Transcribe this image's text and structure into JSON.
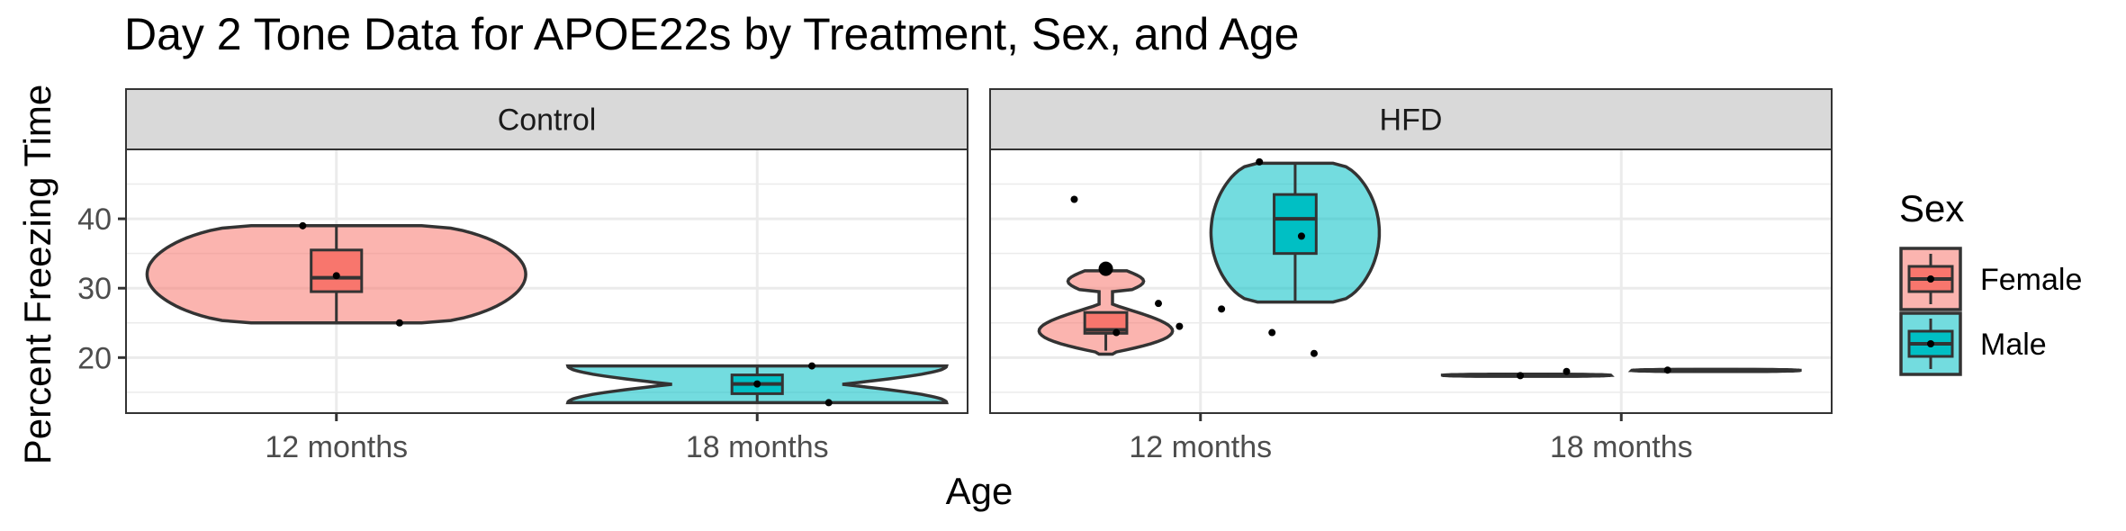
{
  "chart_data": {
    "type": "violin",
    "title": "Day 2 Tone Data for APOE22s by Treatment, Sex, and Age",
    "xlabel": "Age",
    "ylabel": "Percent Freezing Time",
    "ylim": [
      12,
      50
    ],
    "yticks": [
      20,
      30,
      40
    ],
    "grid": true,
    "categories": [
      "12 months",
      "18 months"
    ],
    "facets": [
      {
        "name": "Control",
        "groups": [
          {
            "age": "12 months",
            "sex": "Female",
            "violin_min": 25,
            "violin_max": 39,
            "box": {
              "q1": 29.5,
              "median": 31.5,
              "q3": 35.5,
              "whisker_low": 25,
              "whisker_high": 39
            },
            "points": [
              [
                -0.08,
                39
              ],
              [
                0,
                31.8
              ],
              [
                0.15,
                25
              ]
            ]
          },
          {
            "age": "18 months",
            "sex": "Male",
            "violin_min": 13.5,
            "violin_max": 18.8,
            "box": {
              "q1": 14.8,
              "median": 16.2,
              "q3": 17.5,
              "whisker_low": 13.5,
              "whisker_high": 18.8
            },
            "points": [
              [
                0.13,
                18.8
              ],
              [
                0,
                16.2
              ],
              [
                0.17,
                13.5
              ]
            ]
          }
        ]
      },
      {
        "name": "HFD",
        "groups": [
          {
            "age": "12 months",
            "sex": "Female",
            "violin_min": 20.5,
            "violin_max": 32.5,
            "box": {
              "q1": 23.5,
              "median": 24,
              "q3": 26.5,
              "whisker_low": 21,
              "whisker_high": 26.5
            },
            "points": [
              [
                -0.3,
                42.8
              ],
              [
                -0.1,
                27.8
              ],
              [
                -0.2,
                23.6
              ],
              [
                -0.05,
                24.5
              ],
              [
                0.05,
                27
              ]
            ],
            "outliers": [
              32.8
            ]
          },
          {
            "age": "12 months",
            "sex": "Male",
            "violin_min": 28,
            "violin_max": 48,
            "box": {
              "q1": 35,
              "median": 40,
              "q3": 43.5,
              "whisker_low": 28,
              "whisker_high": 48
            },
            "points": [
              [
                0.14,
                48.2
              ],
              [
                0.24,
                37.5
              ],
              [
                0.17,
                23.6
              ],
              [
                0.27,
                20.6
              ]
            ]
          },
          {
            "age": "18 months",
            "sex": "Female",
            "violin_min": 17.3,
            "violin_max": 17.6,
            "box": {
              "q1": 17.4,
              "median": 17.5,
              "q3": 17.6,
              "whisker_low": 17.3,
              "whisker_high": 17.6
            },
            "points": [
              [
                -0.24,
                17.4
              ],
              [
                -0.13,
                18
              ]
            ]
          },
          {
            "age": "18 months",
            "sex": "Male",
            "violin_min": 18,
            "violin_max": 18.3,
            "box": {
              "q1": 18.1,
              "median": 18.2,
              "q3": 18.3,
              "whisker_low": 18,
              "whisker_high": 18.3
            },
            "points": [
              [
                0.11,
                18.2
              ]
            ]
          }
        ]
      }
    ],
    "legend": {
      "title": "Sex",
      "position": "right",
      "entries": [
        {
          "label": "Female",
          "fill": "#F8766D"
        },
        {
          "label": "Male",
          "fill": "#00BFC4"
        }
      ]
    }
  }
}
